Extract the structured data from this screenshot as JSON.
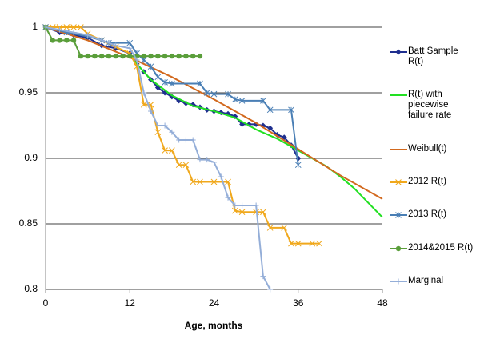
{
  "chart_data": {
    "type": "line",
    "x_label": "Age, months",
    "xlim": [
      0,
      48
    ],
    "xticks": [
      0,
      12,
      24,
      36,
      48
    ],
    "ylim": [
      0.8,
      1
    ],
    "yticks": [
      0.8,
      0.85,
      0.9,
      0.95,
      1
    ],
    "grid": true,
    "legend": "right",
    "series": [
      {
        "name": "Batt Sample R(t)",
        "color": "#1f2f8f",
        "marker": "diamond",
        "x": [
          0,
          2,
          4,
          6,
          8,
          10,
          12,
          13,
          14,
          15,
          16,
          17,
          18,
          19,
          20,
          21,
          22,
          23,
          24,
          25,
          26,
          27,
          28,
          29,
          30,
          31,
          32,
          33,
          34,
          35,
          36
        ],
        "values": [
          1,
          0.996,
          0.994,
          0.992,
          0.986,
          0.984,
          0.98,
          0.972,
          0.966,
          0.96,
          0.954,
          0.95,
          0.947,
          0.944,
          0.942,
          0.941,
          0.939,
          0.937,
          0.936,
          0.935,
          0.934,
          0.932,
          0.926,
          0.926,
          0.926,
          0.925,
          0.923,
          0.918,
          0.916,
          0.91,
          0.9
        ]
      },
      {
        "name": "R(t) with piecewise failure rate",
        "color": "#22e022",
        "marker": "none",
        "x": [
          12,
          13,
          15,
          18,
          21,
          24,
          27,
          30,
          33,
          36,
          38,
          40,
          42,
          44,
          46,
          48
        ],
        "values": [
          0.98,
          0.972,
          0.96,
          0.948,
          0.94,
          0.936,
          0.931,
          0.922,
          0.915,
          0.906,
          0.9,
          0.894,
          0.886,
          0.877,
          0.866,
          0.855
        ]
      },
      {
        "name": "Weibull(t)",
        "color": "#d2691e",
        "marker": "none",
        "x": [
          0,
          6,
          12,
          18,
          24,
          30,
          36,
          42,
          48
        ],
        "values": [
          1,
          0.99,
          0.977,
          0.962,
          0.945,
          0.927,
          0.907,
          0.887,
          0.869
        ]
      },
      {
        "name": "2012 R(t)",
        "color": "#f0a81c",
        "marker": "x",
        "x": [
          0,
          1,
          2,
          3,
          4,
          5,
          6,
          8,
          10,
          12,
          13,
          14,
          15,
          16,
          17,
          18,
          19,
          20,
          21,
          22,
          24,
          26,
          27,
          28,
          30,
          31,
          32,
          34,
          35,
          36,
          38,
          39
        ],
        "values": [
          1,
          1,
          1,
          1,
          1,
          1,
          0.995,
          0.99,
          0.985,
          0.98,
          0.97,
          0.941,
          0.941,
          0.92,
          0.906,
          0.906,
          0.895,
          0.895,
          0.882,
          0.882,
          0.882,
          0.882,
          0.86,
          0.859,
          0.859,
          0.859,
          0.847,
          0.847,
          0.835,
          0.835,
          0.835,
          0.835
        ]
      },
      {
        "name": "2013 R(t)",
        "color": "#4a7fb5",
        "marker": "asterisk",
        "x": [
          0,
          3,
          6,
          8,
          9,
          12,
          13,
          14,
          15,
          16,
          17,
          18,
          22,
          23,
          24,
          26,
          27,
          28,
          31,
          32,
          35,
          36
        ],
        "values": [
          1,
          0.996,
          0.993,
          0.99,
          0.988,
          0.988,
          0.98,
          0.975,
          0.97,
          0.962,
          0.958,
          0.957,
          0.957,
          0.95,
          0.949,
          0.949,
          0.945,
          0.944,
          0.944,
          0.937,
          0.937,
          0.895
        ]
      },
      {
        "name": "2014&2015 R(t)",
        "color": "#5a9e3a",
        "marker": "circle",
        "x": [
          0,
          1,
          2,
          3,
          4,
          5,
          6,
          7,
          8,
          9,
          10,
          11,
          12,
          13,
          14,
          15,
          16,
          17,
          18,
          19,
          20,
          21,
          22
        ],
        "values": [
          1,
          0.99,
          0.99,
          0.99,
          0.99,
          0.978,
          0.978,
          0.978,
          0.978,
          0.978,
          0.978,
          0.978,
          0.978,
          0.978,
          0.978,
          0.978,
          0.978,
          0.978,
          0.978,
          0.978,
          0.978,
          0.978,
          0.978
        ]
      },
      {
        "name": "Marginal",
        "color": "#94aed8",
        "marker": "plus",
        "x": [
          0,
          2,
          4,
          6,
          8,
          10,
          12,
          13,
          14,
          15,
          16,
          17,
          18,
          19,
          20,
          21,
          22,
          23,
          24,
          25,
          26,
          27,
          28,
          30,
          31,
          32
        ],
        "values": [
          1,
          0.998,
          0.996,
          0.994,
          0.99,
          0.986,
          0.984,
          0.975,
          0.95,
          0.936,
          0.925,
          0.925,
          0.92,
          0.914,
          0.914,
          0.914,
          0.899,
          0.899,
          0.897,
          0.886,
          0.87,
          0.864,
          0.864,
          0.864,
          0.81,
          0.8
        ]
      }
    ]
  }
}
